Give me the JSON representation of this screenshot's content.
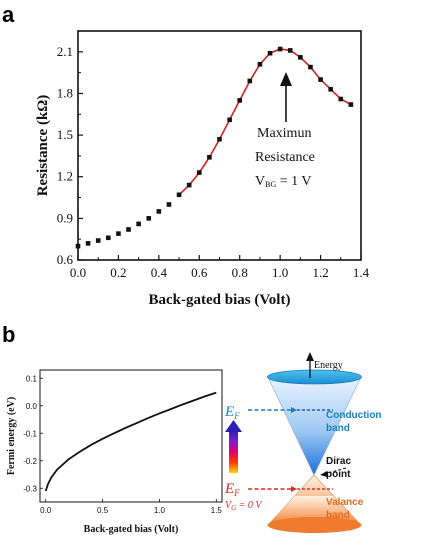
{
  "panel_a": {
    "letter": "a",
    "annotation": {
      "line1": "Maximun",
      "line2": "Resistance",
      "line3_prefix": "V",
      "line3_sub": "BG",
      "line3_suffix": " = 1 V"
    }
  },
  "panel_b": {
    "letter": "b",
    "diagram": {
      "energy_label": "Energy",
      "conduction_label_1": "Conduction",
      "conduction_label_2": "band",
      "dirac_label_1": "Dirac",
      "dirac_label_2": "point",
      "valance_label_1": "Valance",
      "valance_label_2": "band",
      "ef_label": "E",
      "ef_sub": "F",
      "vg_label": "V",
      "vg_sub": "G",
      "vg_value": " = 0 V"
    }
  },
  "colors": {
    "fit_line": "#d42020",
    "marker": "#111111",
    "conduction_top": "#1aa3e0",
    "conduction_bottom": "#1a6fd9",
    "valance_bottom": "#f07a2e",
    "ef_upper": "#1a7fc0",
    "ef_lower": "#e0261e"
  },
  "chart_data": [
    {
      "type": "scatter",
      "title": "",
      "xlabel": "Back-gated bias (Volt)",
      "ylabel": "Resistance (kΩ)",
      "xlim": [
        0.0,
        1.4
      ],
      "ylim": [
        0.6,
        2.25
      ],
      "xticks": [
        "0.0",
        "0.2",
        "0.4",
        "0.6",
        "0.8",
        "1.0",
        "1.2",
        "1.4"
      ],
      "yticks": [
        "0.6",
        "0.9",
        "1.2",
        "1.5",
        "1.8",
        "2.1"
      ],
      "series": [
        {
          "marker": "square",
          "x": [
            0.0,
            0.05,
            0.1,
            0.15,
            0.2,
            0.25,
            0.3,
            0.35,
            0.4,
            0.45,
            0.5,
            0.55,
            0.6,
            0.65,
            0.7,
            0.75,
            0.8,
            0.85,
            0.9,
            0.95,
            1.0,
            1.05,
            1.1,
            1.15,
            1.2,
            1.25,
            1.3,
            1.35
          ],
          "y": [
            0.7,
            0.72,
            0.74,
            0.76,
            0.79,
            0.82,
            0.86,
            0.9,
            0.95,
            1.0,
            1.07,
            1.14,
            1.23,
            1.34,
            1.47,
            1.61,
            1.75,
            1.89,
            2.01,
            2.09,
            2.12,
            2.11,
            2.06,
            1.99,
            1.9,
            1.83,
            1.76,
            1.72
          ]
        },
        {
          "style": "line",
          "x": [
            0.5,
            0.55,
            0.6,
            0.65,
            0.7,
            0.75,
            0.8,
            0.85,
            0.9,
            0.95,
            1.0,
            1.05,
            1.1,
            1.15,
            1.2,
            1.25,
            1.3,
            1.35
          ],
          "y": [
            1.07,
            1.14,
            1.23,
            1.34,
            1.47,
            1.61,
            1.75,
            1.89,
            2.01,
            2.09,
            2.12,
            2.11,
            2.06,
            1.99,
            1.9,
            1.83,
            1.76,
            1.72
          ]
        }
      ]
    },
    {
      "type": "line",
      "title": "",
      "xlabel": "Back-gated bias (Volt)",
      "ylabel": "Fermi energy (eV)",
      "xlim": [
        -0.05,
        1.55
      ],
      "ylim": [
        -0.35,
        0.13
      ],
      "xticks": [
        "0.0",
        "0.5",
        "1.0",
        "1.5"
      ],
      "yticks": [
        "-0.3",
        "-0.2",
        "-0.1",
        "0.0",
        "0.1"
      ],
      "series": [
        {
          "x": [
            0.0,
            0.02,
            0.05,
            0.1,
            0.2,
            0.3,
            0.4,
            0.5,
            0.6,
            0.7,
            0.8,
            0.9,
            1.0,
            1.1,
            1.2,
            1.3,
            1.4,
            1.5
          ],
          "y": [
            -0.31,
            -0.285,
            -0.26,
            -0.232,
            -0.195,
            -0.167,
            -0.142,
            -0.12,
            -0.1,
            -0.081,
            -0.063,
            -0.045,
            -0.028,
            -0.012,
            0.004,
            0.019,
            0.034,
            0.048
          ]
        }
      ]
    }
  ]
}
